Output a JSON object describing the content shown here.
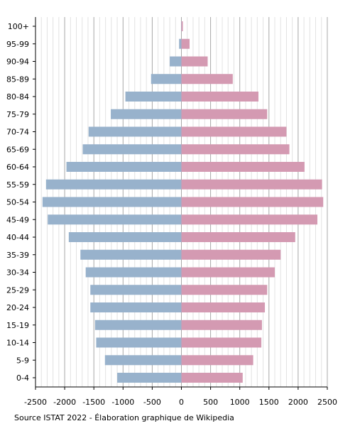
{
  "chart_data": {
    "type": "bar",
    "orientation": "horizontal",
    "layout": "population-pyramid",
    "categories": [
      "0-4",
      "5-9",
      "10-14",
      "15-19",
      "20-24",
      "25-29",
      "30-34",
      "35-39",
      "40-44",
      "45-49",
      "50-54",
      "55-59",
      "60-64",
      "65-69",
      "70-74",
      "75-79",
      "80-84",
      "85-89",
      "90-94",
      "95-99",
      "100+"
    ],
    "series": [
      {
        "color": "#98b2cc",
        "side": "left",
        "values": [
          1100,
          1310,
          1460,
          1480,
          1560,
          1560,
          1640,
          1730,
          1930,
          2290,
          2380,
          2320,
          1970,
          1690,
          1590,
          1210,
          960,
          520,
          200,
          40,
          5
        ]
      },
      {
        "color": "#d49ab2",
        "side": "right",
        "values": [
          1050,
          1230,
          1370,
          1380,
          1430,
          1470,
          1600,
          1700,
          1950,
          2330,
          2430,
          2410,
          2110,
          1850,
          1800,
          1470,
          1320,
          880,
          450,
          140,
          25
        ]
      }
    ],
    "xlim": [
      -2500,
      2500
    ],
    "xticks": [
      -2500,
      -2000,
      -1500,
      -1000,
      -500,
      0,
      500,
      1000,
      1500,
      2000,
      2500
    ],
    "xtick_labels": [
      "-2500",
      "-2000",
      "-1500",
      "-1000",
      "-500",
      "0",
      "500",
      "1000",
      "1500",
      "2000",
      "2500"
    ],
    "grid": true
  },
  "source": "Source ISTAT 2022 - Élaboration graphique de Wikipedia"
}
